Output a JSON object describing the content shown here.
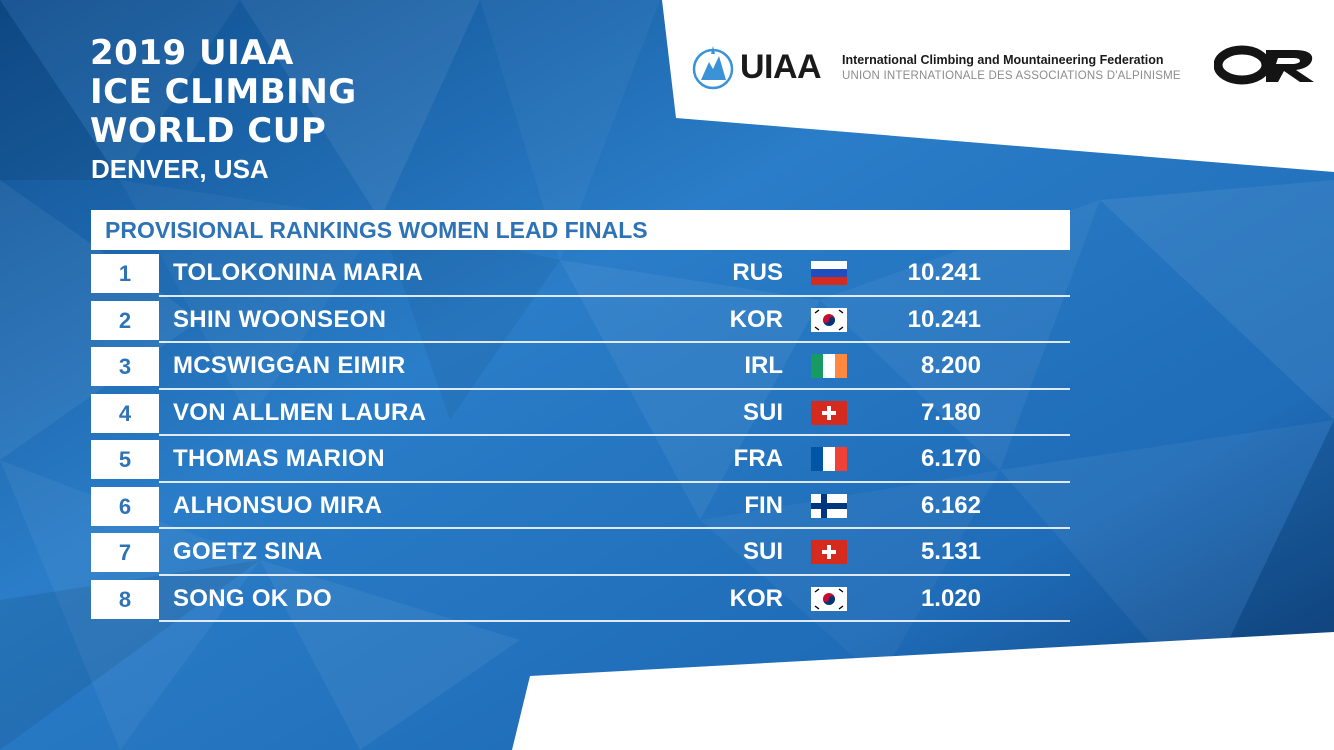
{
  "event": {
    "title_lines": [
      "2019 UIAA",
      "ICE CLIMBING",
      "WORLD CUP"
    ],
    "location": "DENVER, USA"
  },
  "sponsors": {
    "uiaa_name": "UIAA",
    "federation_en": "International Climbing and Mountaineering Federation",
    "federation_fr": "UNION INTERNATIONALE DES ASSOCIATIONS D'ALPINISME",
    "or_logo": "OR"
  },
  "rankings": {
    "title": "PROVISIONAL RANKINGS WOMEN LEAD FINALS",
    "rows": [
      {
        "rank": "1",
        "name": "TOLOKONINA MARIA",
        "nation": "RUS",
        "flag": "russia-flag-icon",
        "score": "10.241"
      },
      {
        "rank": "2",
        "name": "SHIN WOONSEON",
        "nation": "KOR",
        "flag": "korea-flag-icon",
        "score": "10.241"
      },
      {
        "rank": "3",
        "name": "MCSWIGGAN EIMIR",
        "nation": "IRL",
        "flag": "ireland-flag-icon",
        "score": "8.200"
      },
      {
        "rank": "4",
        "name": "VON ALLMEN LAURA",
        "nation": "SUI",
        "flag": "switzerland-flag-icon",
        "score": "7.180"
      },
      {
        "rank": "5",
        "name": "THOMAS MARION",
        "nation": "FRA",
        "flag": "france-flag-icon",
        "score": "6.170"
      },
      {
        "rank": "6",
        "name": "ALHONSUO MIRA",
        "nation": "FIN",
        "flag": "finland-flag-icon",
        "score": "6.162"
      },
      {
        "rank": "7",
        "name": "GOETZ SINA",
        "nation": "SUI",
        "flag": "switzerland-flag-icon",
        "score": "5.131"
      },
      {
        "rank": "8",
        "name": "SONG OK DO",
        "nation": "KOR",
        "flag": "korea-flag-icon",
        "score": "1.020"
      }
    ]
  },
  "colors": {
    "background_blue": "#1d6cb6",
    "accent_blue": "#2e73b6",
    "white": "#ffffff"
  }
}
